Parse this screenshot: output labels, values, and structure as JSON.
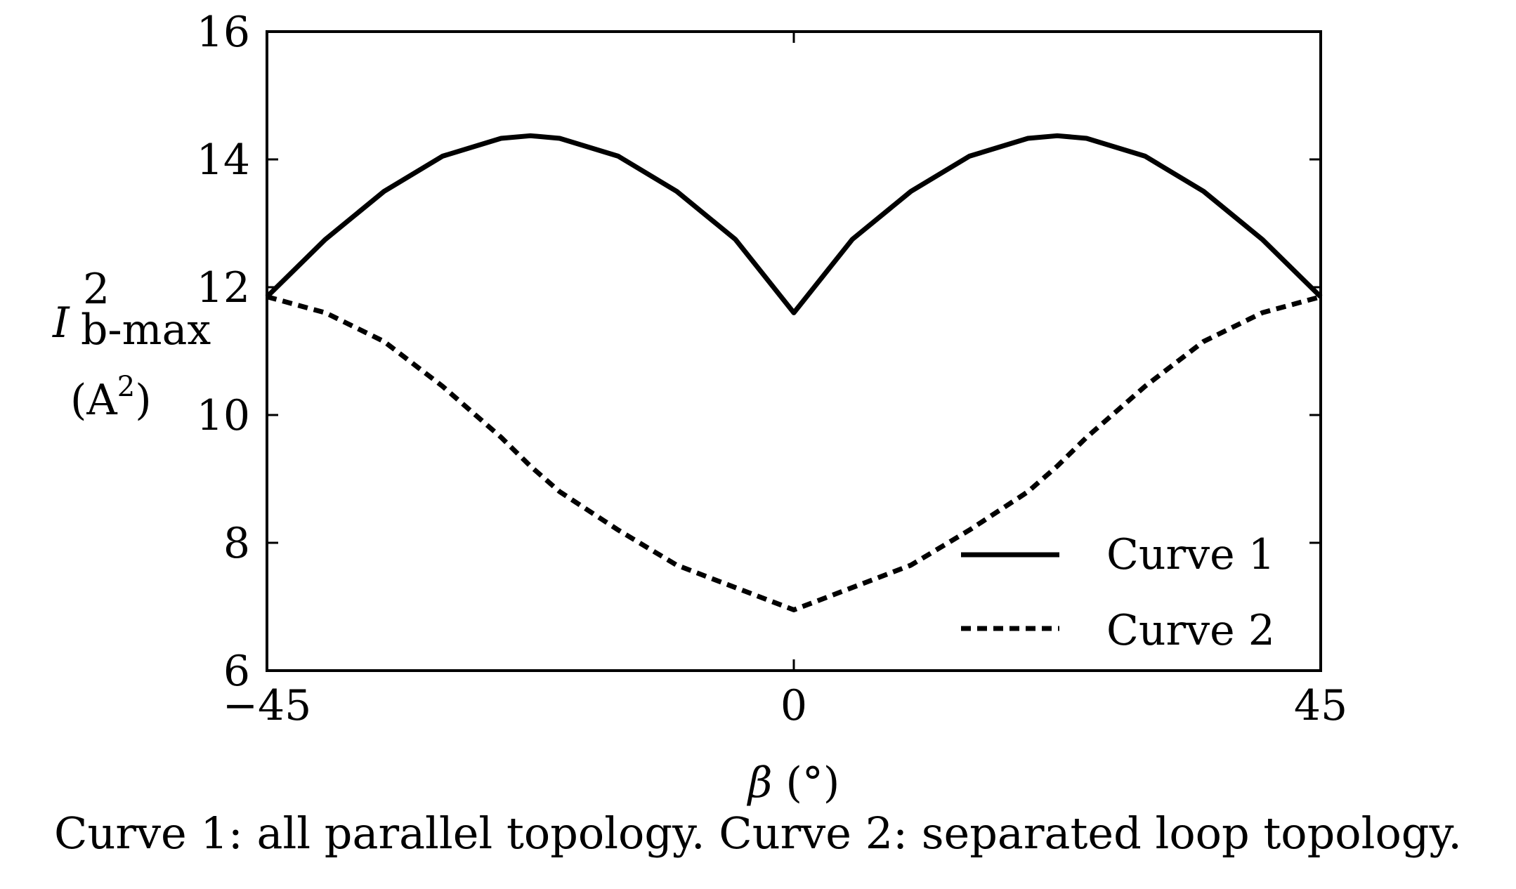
{
  "caption": "Curve 1: all parallel topology. Curve 2: separated loop topology.",
  "chart_data": {
    "type": "line",
    "xlabel": {
      "symbol": "β",
      "unit": " (°)"
    },
    "ylabel": {
      "symbol": "I",
      "superscript": "2",
      "subscript": "b-max",
      "unit_open": "(A",
      "unit_sup": "2",
      "unit_close": ")"
    },
    "xlim": [
      -45,
      45
    ],
    "ylim": [
      6,
      16
    ],
    "xticks": [
      -45,
      0,
      45
    ],
    "xtick_labels": [
      "−45",
      "0",
      "45"
    ],
    "yticks": [
      6,
      8,
      10,
      12,
      14,
      16
    ],
    "ytick_labels": [
      "6",
      "8",
      "10",
      "12",
      "14",
      "16"
    ],
    "grid": false,
    "legend_position": "bottom-right",
    "x": [
      -45,
      -40,
      -35,
      -30,
      -25,
      -22.5,
      -20,
      -15,
      -10,
      -5,
      0,
      5,
      10,
      15,
      20,
      22.5,
      25,
      30,
      35,
      40,
      45
    ],
    "series": [
      {
        "name": "Curve 1",
        "style": "solid",
        "color": "#000000",
        "values": [
          11.85,
          12.75,
          13.5,
          14.05,
          14.33,
          14.37,
          14.33,
          14.05,
          13.5,
          12.75,
          11.6,
          12.75,
          13.5,
          14.05,
          14.33,
          14.37,
          14.33,
          14.05,
          13.5,
          12.75,
          11.85
        ]
      },
      {
        "name": "Curve 2",
        "style": "dashed",
        "color": "#000000",
        "values": [
          11.85,
          11.6,
          11.15,
          10.45,
          9.65,
          9.2,
          8.8,
          8.2,
          7.65,
          7.3,
          6.95,
          7.3,
          7.65,
          8.2,
          8.8,
          9.2,
          9.65,
          10.45,
          11.15,
          11.6,
          11.85
        ]
      }
    ]
  }
}
